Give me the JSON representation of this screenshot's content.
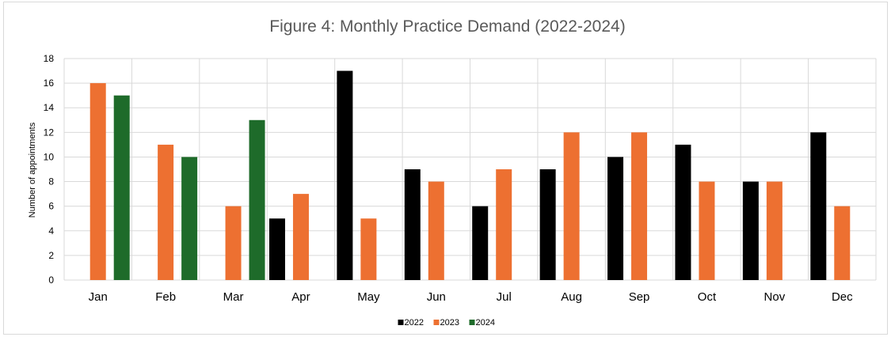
{
  "chart_data": {
    "type": "bar",
    "title": "Figure 4:  Monthly Practice Demand (2022-2024)",
    "xlabel": "",
    "ylabel": "Number of appointments",
    "ylim": [
      0,
      18
    ],
    "yticks": [
      0,
      2,
      4,
      6,
      8,
      10,
      12,
      14,
      16,
      18
    ],
    "grid": true,
    "legend_position": "bottom",
    "categories": [
      "Jan",
      "Feb",
      "Mar",
      "Apr",
      "May",
      "Jun",
      "Jul",
      "Aug",
      "Sep",
      "Oct",
      "Nov",
      "Dec"
    ],
    "series": [
      {
        "name": "2022",
        "color": "#000000",
        "values": [
          null,
          null,
          null,
          5,
          17,
          9,
          6,
          9,
          10,
          11,
          8,
          12
        ]
      },
      {
        "name": "2023",
        "color": "#ed7031",
        "values": [
          16,
          11,
          6,
          7,
          5,
          8,
          9,
          12,
          12,
          8,
          8,
          6
        ]
      },
      {
        "name": "2024",
        "color": "#1e6b2a",
        "values": [
          15,
          10,
          13,
          null,
          null,
          null,
          null,
          null,
          null,
          null,
          null,
          null
        ]
      }
    ]
  }
}
